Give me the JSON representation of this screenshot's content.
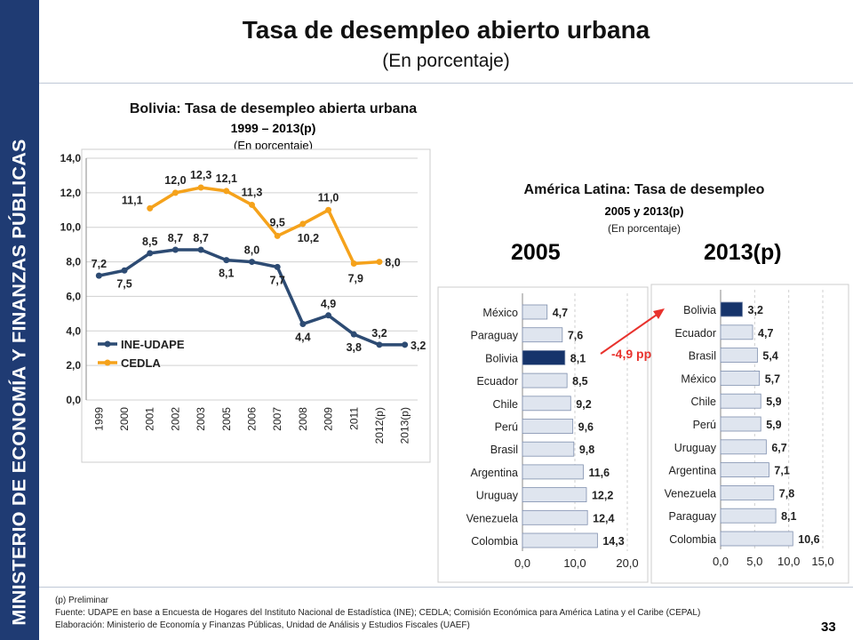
{
  "sidebar": {
    "text": "MINISTERIO DE ECONOMÍA Y FINANZAS PÚBLICAS"
  },
  "header": {
    "title": "Tasa de desempleo abierto urbana",
    "subtitle": "(En porcentaje)"
  },
  "left_panel": {
    "title": "Bolivia: Tasa de desempleo abierta urbana",
    "subtitle1": "1999 – 2013(p)",
    "subtitle2": "(En porcentaje)"
  },
  "right_panel": {
    "title": "América Latina: Tasa de desempleo",
    "subtitle1": "2005 y 2013(p)",
    "subtitle2": "(En porcentaje)",
    "label_2005": "2005",
    "label_2013": "2013(p)"
  },
  "annotation": {
    "text": "-4,9 pp",
    "color": "#e8322d"
  },
  "footer": {
    "note": "(p) Preliminar",
    "source": "Fuente: UDAPE en base a Encuesta de Hogares del Instituto Nacional de Estadística (INE);   CEDLA; Comisión Económica para América Latina y el Caribe (CEPAL)",
    "author": "Elaboración: Ministerio de Economía y Finanzas Públicas, Unidad de Análisis y Estudios Fiscales (UAEF)",
    "page": "33"
  },
  "colors": {
    "brand": "#1f3b73",
    "ine_line": "#2d4b73",
    "cedla_line": "#f5a21b",
    "bar": "#dfe5ef",
    "bar_bolivia": "#16346b"
  },
  "chart_data": [
    {
      "type": "line",
      "categories": [
        "1999",
        "2000",
        "2001",
        "2002",
        "2003",
        "2005",
        "2006",
        "2007",
        "2008",
        "2009",
        "2011",
        "2012(p)",
        "2013(p)"
      ],
      "ylim": [
        0,
        14
      ],
      "y_ticks": [
        "0,0",
        "2,0",
        "4,0",
        "6,0",
        "8,0",
        "10,0",
        "12,0",
        "14,0"
      ],
      "grid": true,
      "legend": "bottom-left",
      "series": [
        {
          "name": "INE-UDAPE",
          "values": [
            7.2,
            7.5,
            8.5,
            8.7,
            8.7,
            8.1,
            8.0,
            7.7,
            4.4,
            4.9,
            3.8,
            3.2,
            3.2
          ],
          "labels": [
            "7,2",
            "7,5",
            "8,5",
            "8,7",
            "8,7",
            "8,1",
            "8,0",
            "7,7",
            "4,4",
            "4,9",
            "3,8",
            "3,2",
            "3,2"
          ]
        },
        {
          "name": "CEDLA",
          "values": [
            null,
            null,
            11.1,
            12.0,
            12.3,
            12.1,
            11.3,
            9.5,
            10.2,
            11.0,
            7.9,
            8.0,
            null
          ],
          "labels": [
            null,
            null,
            "11,1",
            "12,0",
            "12,3",
            "12,1",
            "11,3",
            "9,5",
            "10,2",
            "11,0",
            "7,9",
            "8,0",
            null
          ]
        }
      ]
    },
    {
      "type": "bar",
      "orientation": "horizontal",
      "year": "2005",
      "categories": [
        "México",
        "Paraguay",
        "Bolivia",
        "Ecuador",
        "Chile",
        "Perú",
        "Brasil",
        "Argentina",
        "Uruguay",
        "Venezuela",
        "Colombia"
      ],
      "values": [
        4.7,
        7.6,
        8.1,
        8.5,
        9.2,
        9.6,
        9.8,
        11.6,
        12.2,
        12.4,
        14.3
      ],
      "labels": [
        "4,7",
        "7,6",
        "8,1",
        "8,5",
        "9,2",
        "9,6",
        "9,8",
        "11,6",
        "12,2",
        "12,4",
        "14,3"
      ],
      "highlight": "Bolivia",
      "xlim": [
        0,
        20
      ],
      "x_ticks": [
        "0,0",
        "10,0",
        "20,0"
      ]
    },
    {
      "type": "bar",
      "orientation": "horizontal",
      "year": "2013(p)",
      "categories": [
        "Bolivia",
        "Ecuador",
        "Brasil",
        "México",
        "Chile",
        "Perú",
        "Uruguay",
        "Argentina",
        "Venezuela",
        "Paraguay",
        "Colombia"
      ],
      "values": [
        3.2,
        4.7,
        5.4,
        5.7,
        5.9,
        5.9,
        6.7,
        7.1,
        7.8,
        8.1,
        10.6
      ],
      "labels": [
        "3,2",
        "4,7",
        "5,4",
        "5,7",
        "5,9",
        "5,9",
        "6,7",
        "7,1",
        "7,8",
        "8,1",
        "10,6"
      ],
      "highlight": "Bolivia",
      "xlim": [
        0,
        15
      ],
      "x_ticks": [
        "0,0",
        "5,0",
        "10,0",
        "15,0"
      ]
    }
  ]
}
